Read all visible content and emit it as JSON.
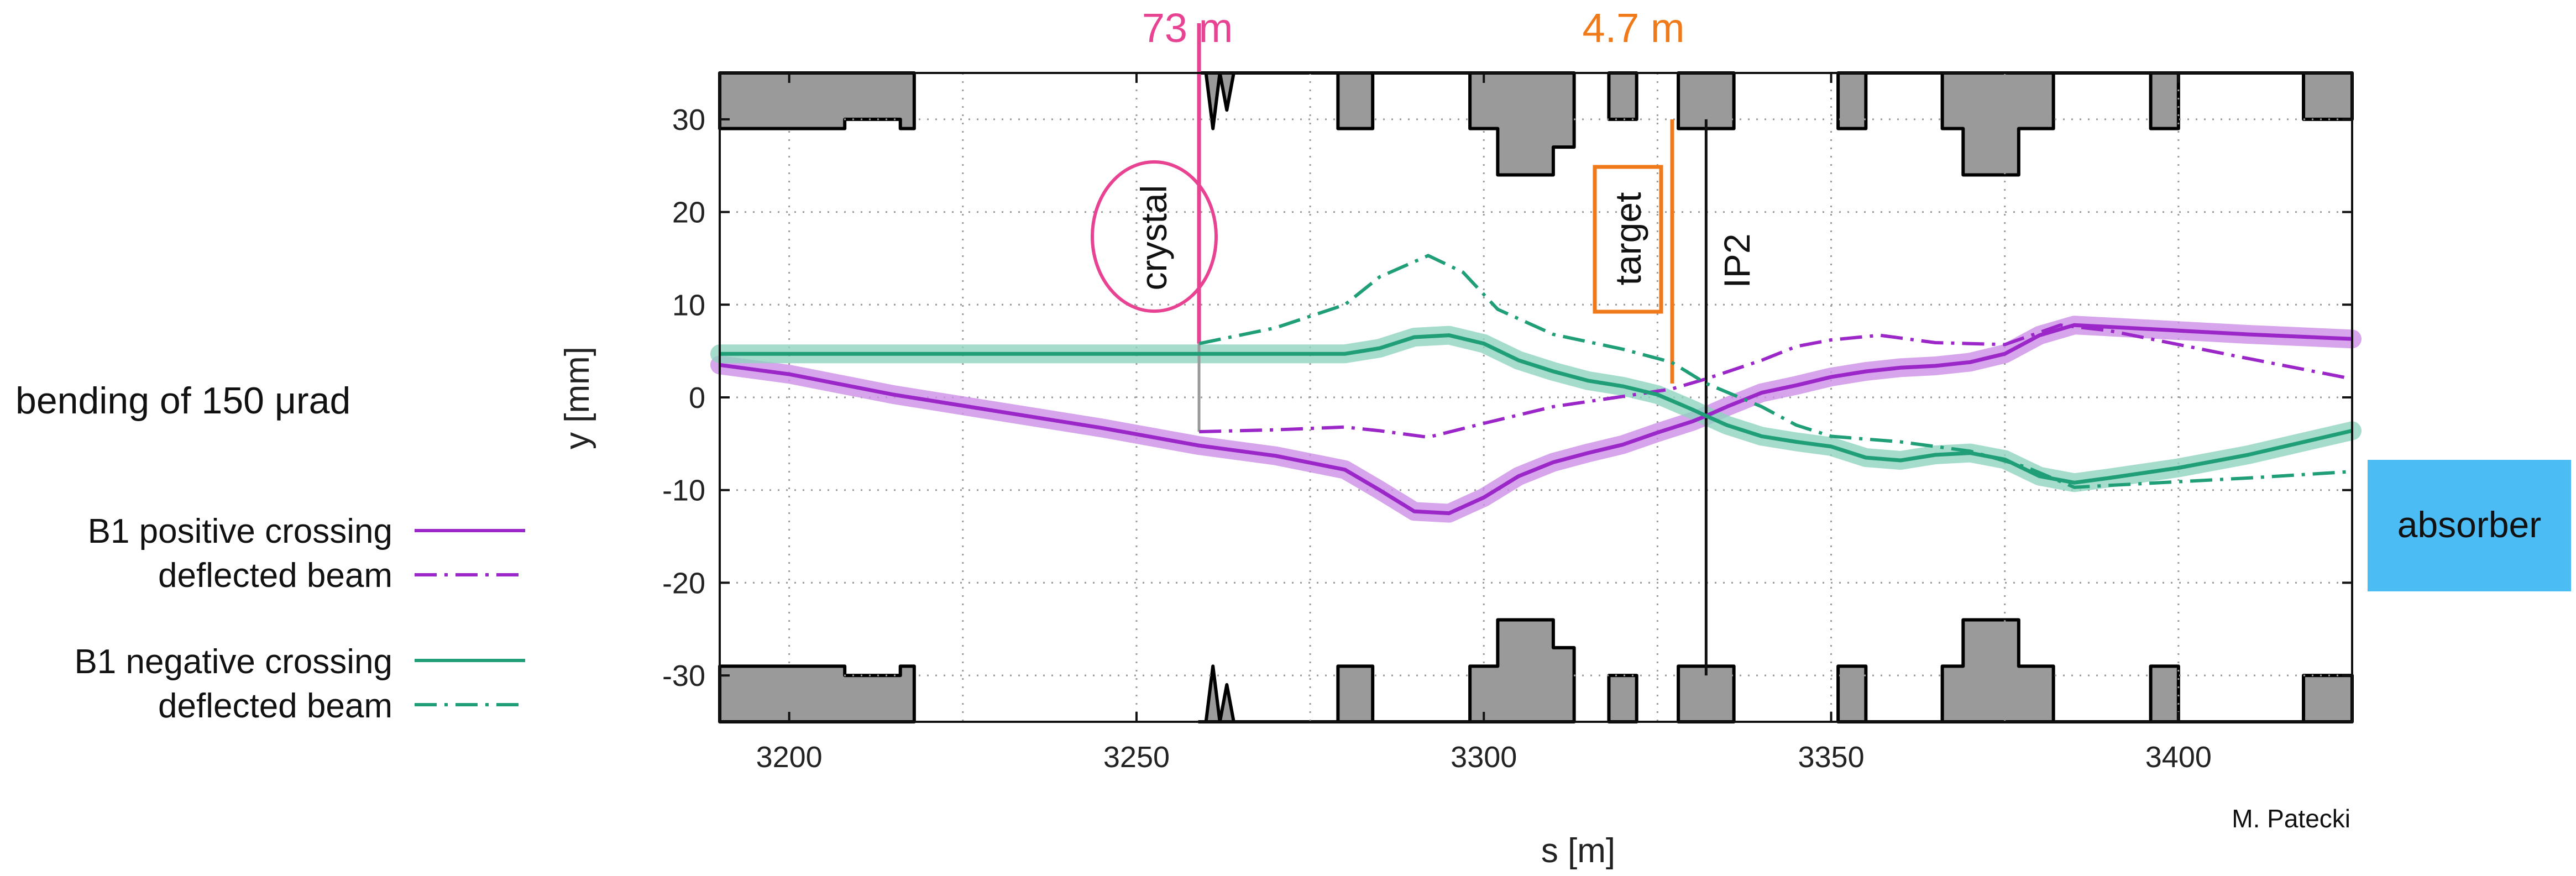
{
  "chart_data": {
    "type": "line",
    "xlabel": "s [m]",
    "ylabel": "y [mm]",
    "xlim": [
      3190,
      3425
    ],
    "ylim": [
      -35,
      35
    ],
    "xticks": [
      "3200",
      "3250",
      "3300",
      "3350",
      "3400"
    ],
    "yticks": [
      "-30",
      "-20",
      "-10",
      "0",
      "10",
      "20",
      "30"
    ],
    "grid": true,
    "legend_position": "left",
    "note": "bending of 150 μrad",
    "credit": "M. Patecki",
    "distances": [
      {
        "label": "73 m",
        "color": "#e84393",
        "x": 3259
      },
      {
        "label": "4.7 m",
        "color": "#f07a1a",
        "x": 3327
      }
    ],
    "annotations": [
      {
        "label": "crystal",
        "x": 3259
      },
      {
        "label": "target",
        "x": 3326
      },
      {
        "label": "IP2",
        "x": 3332
      },
      {
        "label": "absorber"
      }
    ],
    "colors": {
      "positive": "#9b27c9",
      "positive_band": "#cc8fe6",
      "negative": "#1f9e78",
      "negative_band": "#8ed3bf",
      "aperture": "#9a9a9a",
      "crystal": "#e84393",
      "target": "#f07a1a",
      "absorber": "#4cbcf5"
    },
    "series": [
      {
        "name": "B1 positive crossing",
        "style": "solid",
        "color": "#9b27c9",
        "points": [
          [
            3190,
            3.5
          ],
          [
            3200,
            2.5
          ],
          [
            3215,
            0.3
          ],
          [
            3230,
            -1.5
          ],
          [
            3245,
            -3.3
          ],
          [
            3259,
            -5.2
          ],
          [
            3270,
            -6.3
          ],
          [
            3280,
            -7.8
          ],
          [
            3285,
            -10
          ],
          [
            3290,
            -12.3
          ],
          [
            3295,
            -12.5
          ],
          [
            3300,
            -10.8
          ],
          [
            3305,
            -8.5
          ],
          [
            3310,
            -7
          ],
          [
            3315,
            -6
          ],
          [
            3320,
            -5.1
          ],
          [
            3325,
            -3.8
          ],
          [
            3330,
            -2.6
          ],
          [
            3332,
            -2
          ],
          [
            3335,
            -1
          ],
          [
            3340,
            0.5
          ],
          [
            3345,
            1.3
          ],
          [
            3350,
            2.2
          ],
          [
            3355,
            2.8
          ],
          [
            3360,
            3.2
          ],
          [
            3365,
            3.4
          ],
          [
            3370,
            3.8
          ],
          [
            3375,
            4.7
          ],
          [
            3380,
            6.7
          ],
          [
            3385,
            7.8
          ],
          [
            3390,
            7.6
          ],
          [
            3400,
            7.2
          ],
          [
            3410,
            6.8
          ],
          [
            3425,
            6.3
          ]
        ]
      },
      {
        "name": "deflected beam",
        "style": "dashdot",
        "color": "#9b27c9",
        "points": [
          [
            3259,
            -3.7
          ],
          [
            3270,
            -3.5
          ],
          [
            3280,
            -3.2
          ],
          [
            3285,
            -3.6
          ],
          [
            3292,
            -4.3
          ],
          [
            3300,
            -2.8
          ],
          [
            3310,
            -1
          ],
          [
            3320,
            0.1
          ],
          [
            3327,
            0.9
          ],
          [
            3332,
            2
          ],
          [
            3340,
            4
          ],
          [
            3345,
            5.5
          ],
          [
            3350,
            6.2
          ],
          [
            3357,
            6.7
          ],
          [
            3365,
            5.9
          ],
          [
            3375,
            5.7
          ],
          [
            3383,
            7.8
          ],
          [
            3390,
            7.2
          ],
          [
            3400,
            5.7
          ],
          [
            3410,
            4.2
          ],
          [
            3425,
            2
          ]
        ]
      },
      {
        "name": "B1 negative crossing",
        "style": "solid",
        "color": "#1f9e78",
        "points": [
          [
            3190,
            4.7
          ],
          [
            3200,
            4.7
          ],
          [
            3220,
            4.7
          ],
          [
            3250,
            4.7
          ],
          [
            3270,
            4.7
          ],
          [
            3280,
            4.7
          ],
          [
            3285,
            5.3
          ],
          [
            3290,
            6.5
          ],
          [
            3295,
            6.7
          ],
          [
            3300,
            5.8
          ],
          [
            3305,
            4
          ],
          [
            3310,
            2.8
          ],
          [
            3315,
            1.8
          ],
          [
            3320,
            1.2
          ],
          [
            3325,
            0.3
          ],
          [
            3330,
            -1.3
          ],
          [
            3332,
            -2
          ],
          [
            3335,
            -3
          ],
          [
            3340,
            -4.2
          ],
          [
            3345,
            -4.8
          ],
          [
            3350,
            -5.3
          ],
          [
            3355,
            -6.5
          ],
          [
            3360,
            -6.8
          ],
          [
            3365,
            -6.2
          ],
          [
            3370,
            -6
          ],
          [
            3375,
            -6.7
          ],
          [
            3380,
            -8.5
          ],
          [
            3385,
            -9.2
          ],
          [
            3390,
            -8.7
          ],
          [
            3400,
            -7.6
          ],
          [
            3410,
            -6.2
          ],
          [
            3425,
            -3.6
          ]
        ]
      },
      {
        "name": "deflected beam",
        "style": "dashdot",
        "color": "#1f9e78",
        "points": [
          [
            3259,
            5.8
          ],
          [
            3270,
            7.5
          ],
          [
            3280,
            10
          ],
          [
            3285,
            13
          ],
          [
            3292,
            15.3
          ],
          [
            3297,
            13.5
          ],
          [
            3302,
            9.5
          ],
          [
            3310,
            6.8
          ],
          [
            3320,
            5.2
          ],
          [
            3327,
            3.8
          ],
          [
            3332,
            1.5
          ],
          [
            3340,
            -1
          ],
          [
            3345,
            -3
          ],
          [
            3350,
            -4.2
          ],
          [
            3360,
            -4.8
          ],
          [
            3370,
            -5.8
          ],
          [
            3378,
            -7.5
          ],
          [
            3385,
            -9.7
          ],
          [
            3390,
            -9.5
          ],
          [
            3400,
            -9.1
          ],
          [
            3410,
            -8.7
          ],
          [
            3425,
            -8
          ]
        ]
      }
    ]
  }
}
